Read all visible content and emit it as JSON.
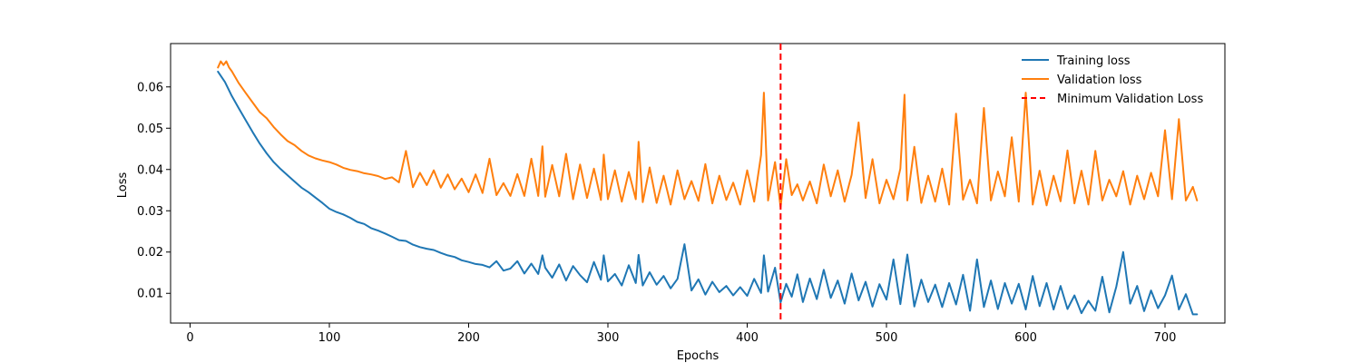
{
  "chart_data": {
    "type": "line",
    "title": "",
    "xlabel": "Epochs",
    "ylabel": "Loss",
    "xlim": [
      -14,
      743
    ],
    "ylim": [
      0.0028,
      0.0705
    ],
    "xticks": [
      0,
      100,
      200,
      300,
      400,
      500,
      600,
      700
    ],
    "yticks": [
      0.01,
      0.02,
      0.03,
      0.04,
      0.05,
      0.06
    ],
    "xtick_labels": [
      "0",
      "100",
      "200",
      "300",
      "400",
      "500",
      "600",
      "700"
    ],
    "ytick_labels": [
      "0.01",
      "0.02",
      "0.03",
      "0.04",
      "0.05",
      "0.06"
    ],
    "grid": false,
    "legend_position": "top-right",
    "colors": {
      "training": "#1f77b4",
      "validation": "#ff7f0e",
      "min_marker": "#ff0000"
    },
    "series": [
      {
        "name": "Training loss",
        "color": "#1f77b4",
        "style": "solid",
        "x": [
          20,
          25,
          30,
          35,
          40,
          45,
          50,
          55,
          60,
          65,
          70,
          75,
          80,
          85,
          90,
          95,
          100,
          105,
          110,
          115,
          120,
          125,
          130,
          135,
          140,
          145,
          150,
          155,
          160,
          165,
          170,
          175,
          180,
          185,
          190,
          195,
          200,
          205,
          210,
          215,
          220,
          225,
          230,
          235,
          240,
          245,
          250,
          253,
          255,
          260,
          265,
          270,
          275,
          280,
          285,
          290,
          295,
          297,
          300,
          305,
          310,
          315,
          320,
          322,
          325,
          330,
          335,
          340,
          345,
          350,
          355,
          360,
          365,
          370,
          375,
          380,
          385,
          390,
          395,
          400,
          405,
          410,
          412,
          415,
          420,
          424,
          428,
          432,
          436,
          440,
          445,
          450,
          455,
          460,
          465,
          470,
          475,
          480,
          485,
          490,
          495,
          500,
          505,
          510,
          515,
          520,
          525,
          530,
          535,
          540,
          545,
          550,
          555,
          560,
          565,
          570,
          575,
          580,
          585,
          590,
          595,
          600,
          605,
          610,
          615,
          620,
          625,
          630,
          635,
          640,
          645,
          650,
          655,
          660,
          665,
          670,
          675,
          680,
          685,
          690,
          695,
          700,
          705,
          710,
          715,
          720,
          723
        ],
        "values": [
          0.0637,
          0.0612,
          0.0578,
          0.0548,
          0.0519,
          0.049,
          0.0463,
          0.0439,
          0.0418,
          0.0401,
          0.0386,
          0.0371,
          0.0356,
          0.0345,
          0.0332,
          0.0319,
          0.0305,
          0.0297,
          0.0291,
          0.0283,
          0.0273,
          0.0268,
          0.0258,
          0.0252,
          0.0245,
          0.0237,
          0.0229,
          0.0227,
          0.0218,
          0.0212,
          0.0208,
          0.0205,
          0.0198,
          0.0192,
          0.0188,
          0.018,
          0.0176,
          0.0171,
          0.0169,
          0.0163,
          0.0178,
          0.0155,
          0.016,
          0.0178,
          0.0148,
          0.0172,
          0.0147,
          0.0192,
          0.0162,
          0.0138,
          0.017,
          0.0131,
          0.0166,
          0.0144,
          0.0127,
          0.0176,
          0.0133,
          0.0192,
          0.0129,
          0.0147,
          0.0119,
          0.0168,
          0.0125,
          0.0193,
          0.0119,
          0.0151,
          0.0121,
          0.0142,
          0.0112,
          0.0135,
          0.0219,
          0.0107,
          0.0134,
          0.0097,
          0.0128,
          0.0103,
          0.0118,
          0.0095,
          0.0115,
          0.0094,
          0.0135,
          0.0101,
          0.0192,
          0.0104,
          0.0162,
          0.0078,
          0.0123,
          0.0092,
          0.0146,
          0.0079,
          0.0136,
          0.0086,
          0.0157,
          0.0089,
          0.0131,
          0.0075,
          0.0148,
          0.0083,
          0.0128,
          0.0068,
          0.0122,
          0.0085,
          0.0182,
          0.0074,
          0.0194,
          0.0068,
          0.0133,
          0.0079,
          0.0121,
          0.0067,
          0.0125,
          0.0073,
          0.0145,
          0.0058,
          0.0182,
          0.0067,
          0.0131,
          0.0062,
          0.0125,
          0.0075,
          0.0123,
          0.0061,
          0.0142,
          0.0069,
          0.0125,
          0.0061,
          0.0118,
          0.0062,
          0.0095,
          0.0052,
          0.0082,
          0.0058,
          0.014,
          0.0054,
          0.0116,
          0.02,
          0.0075,
          0.0118,
          0.0057,
          0.0107,
          0.0064,
          0.0095,
          0.0143,
          0.0061,
          0.0098,
          0.0049,
          0.0049
        ]
      },
      {
        "name": "Validation loss",
        "color": "#ff7f0e",
        "style": "solid",
        "x": [
          20,
          22,
          24,
          26,
          28,
          30,
          35,
          40,
          45,
          50,
          55,
          60,
          65,
          70,
          75,
          80,
          85,
          90,
          95,
          100,
          105,
          110,
          115,
          120,
          125,
          130,
          135,
          140,
          145,
          150,
          155,
          160,
          165,
          170,
          175,
          180,
          185,
          190,
          195,
          200,
          205,
          210,
          215,
          220,
          225,
          230,
          235,
          240,
          245,
          250,
          253,
          255,
          260,
          265,
          270,
          275,
          280,
          285,
          290,
          295,
          297,
          300,
          305,
          310,
          315,
          320,
          322,
          325,
          330,
          335,
          340,
          345,
          350,
          355,
          360,
          365,
          370,
          375,
          380,
          385,
          390,
          395,
          400,
          405,
          410,
          412,
          415,
          420,
          424,
          428,
          432,
          436,
          440,
          445,
          450,
          455,
          460,
          465,
          470,
          475,
          480,
          485,
          490,
          495,
          500,
          505,
          510,
          513,
          515,
          520,
          525,
          530,
          535,
          540,
          545,
          550,
          555,
          560,
          565,
          570,
          575,
          580,
          585,
          590,
          595,
          600,
          605,
          610,
          615,
          620,
          625,
          630,
          635,
          640,
          645,
          650,
          655,
          660,
          665,
          670,
          675,
          680,
          685,
          690,
          695,
          700,
          705,
          710,
          715,
          720,
          723
        ],
        "values": [
          0.0647,
          0.0662,
          0.0653,
          0.0662,
          0.0647,
          0.0638,
          0.0609,
          0.0585,
          0.0562,
          0.0539,
          0.0524,
          0.0503,
          0.0485,
          0.0469,
          0.0459,
          0.0445,
          0.0434,
          0.0427,
          0.0422,
          0.0418,
          0.0412,
          0.0404,
          0.0399,
          0.0396,
          0.0391,
          0.0388,
          0.0384,
          0.0377,
          0.0381,
          0.0369,
          0.0445,
          0.0357,
          0.0392,
          0.0362,
          0.0398,
          0.0356,
          0.0388,
          0.0352,
          0.0378,
          0.0345,
          0.0388,
          0.0343,
          0.0426,
          0.0338,
          0.0367,
          0.0336,
          0.0389,
          0.0336,
          0.0426,
          0.0336,
          0.0456,
          0.0334,
          0.0411,
          0.0335,
          0.0438,
          0.0328,
          0.0412,
          0.0331,
          0.0402,
          0.0326,
          0.0436,
          0.0328,
          0.0398,
          0.0322,
          0.0394,
          0.0328,
          0.0467,
          0.0321,
          0.0405,
          0.0319,
          0.0385,
          0.0315,
          0.0398,
          0.0328,
          0.0372,
          0.0324,
          0.0413,
          0.0318,
          0.0385,
          0.0326,
          0.0368,
          0.0315,
          0.0398,
          0.0322,
          0.0435,
          0.0586,
          0.0325,
          0.0418,
          0.0309,
          0.0425,
          0.0338,
          0.0364,
          0.0325,
          0.0371,
          0.0318,
          0.0412,
          0.0335,
          0.0398,
          0.0322,
          0.0387,
          0.0514,
          0.0331,
          0.0425,
          0.0318,
          0.0375,
          0.0328,
          0.0402,
          0.0581,
          0.0325,
          0.0455,
          0.0319,
          0.0385,
          0.0322,
          0.0402,
          0.0315,
          0.0535,
          0.0327,
          0.0375,
          0.0318,
          0.0549,
          0.0325,
          0.0395,
          0.0335,
          0.0478,
          0.0322,
          0.0586,
          0.0315,
          0.0397,
          0.0313,
          0.0385,
          0.0323,
          0.0446,
          0.0318,
          0.0397,
          0.0315,
          0.0445,
          0.0325,
          0.0375,
          0.0335,
          0.0396,
          0.0315,
          0.0385,
          0.0328,
          0.0392,
          0.0335,
          0.0495,
          0.0328,
          0.0522,
          0.0325,
          0.0358,
          0.0325
        ]
      }
    ],
    "vlines": [
      {
        "name": "Minimum Validation Loss",
        "x": 424,
        "color": "#ff0000",
        "style": "dashed"
      }
    ],
    "legend": [
      "Training loss",
      "Validation loss",
      "Minimum Validation Loss"
    ]
  }
}
